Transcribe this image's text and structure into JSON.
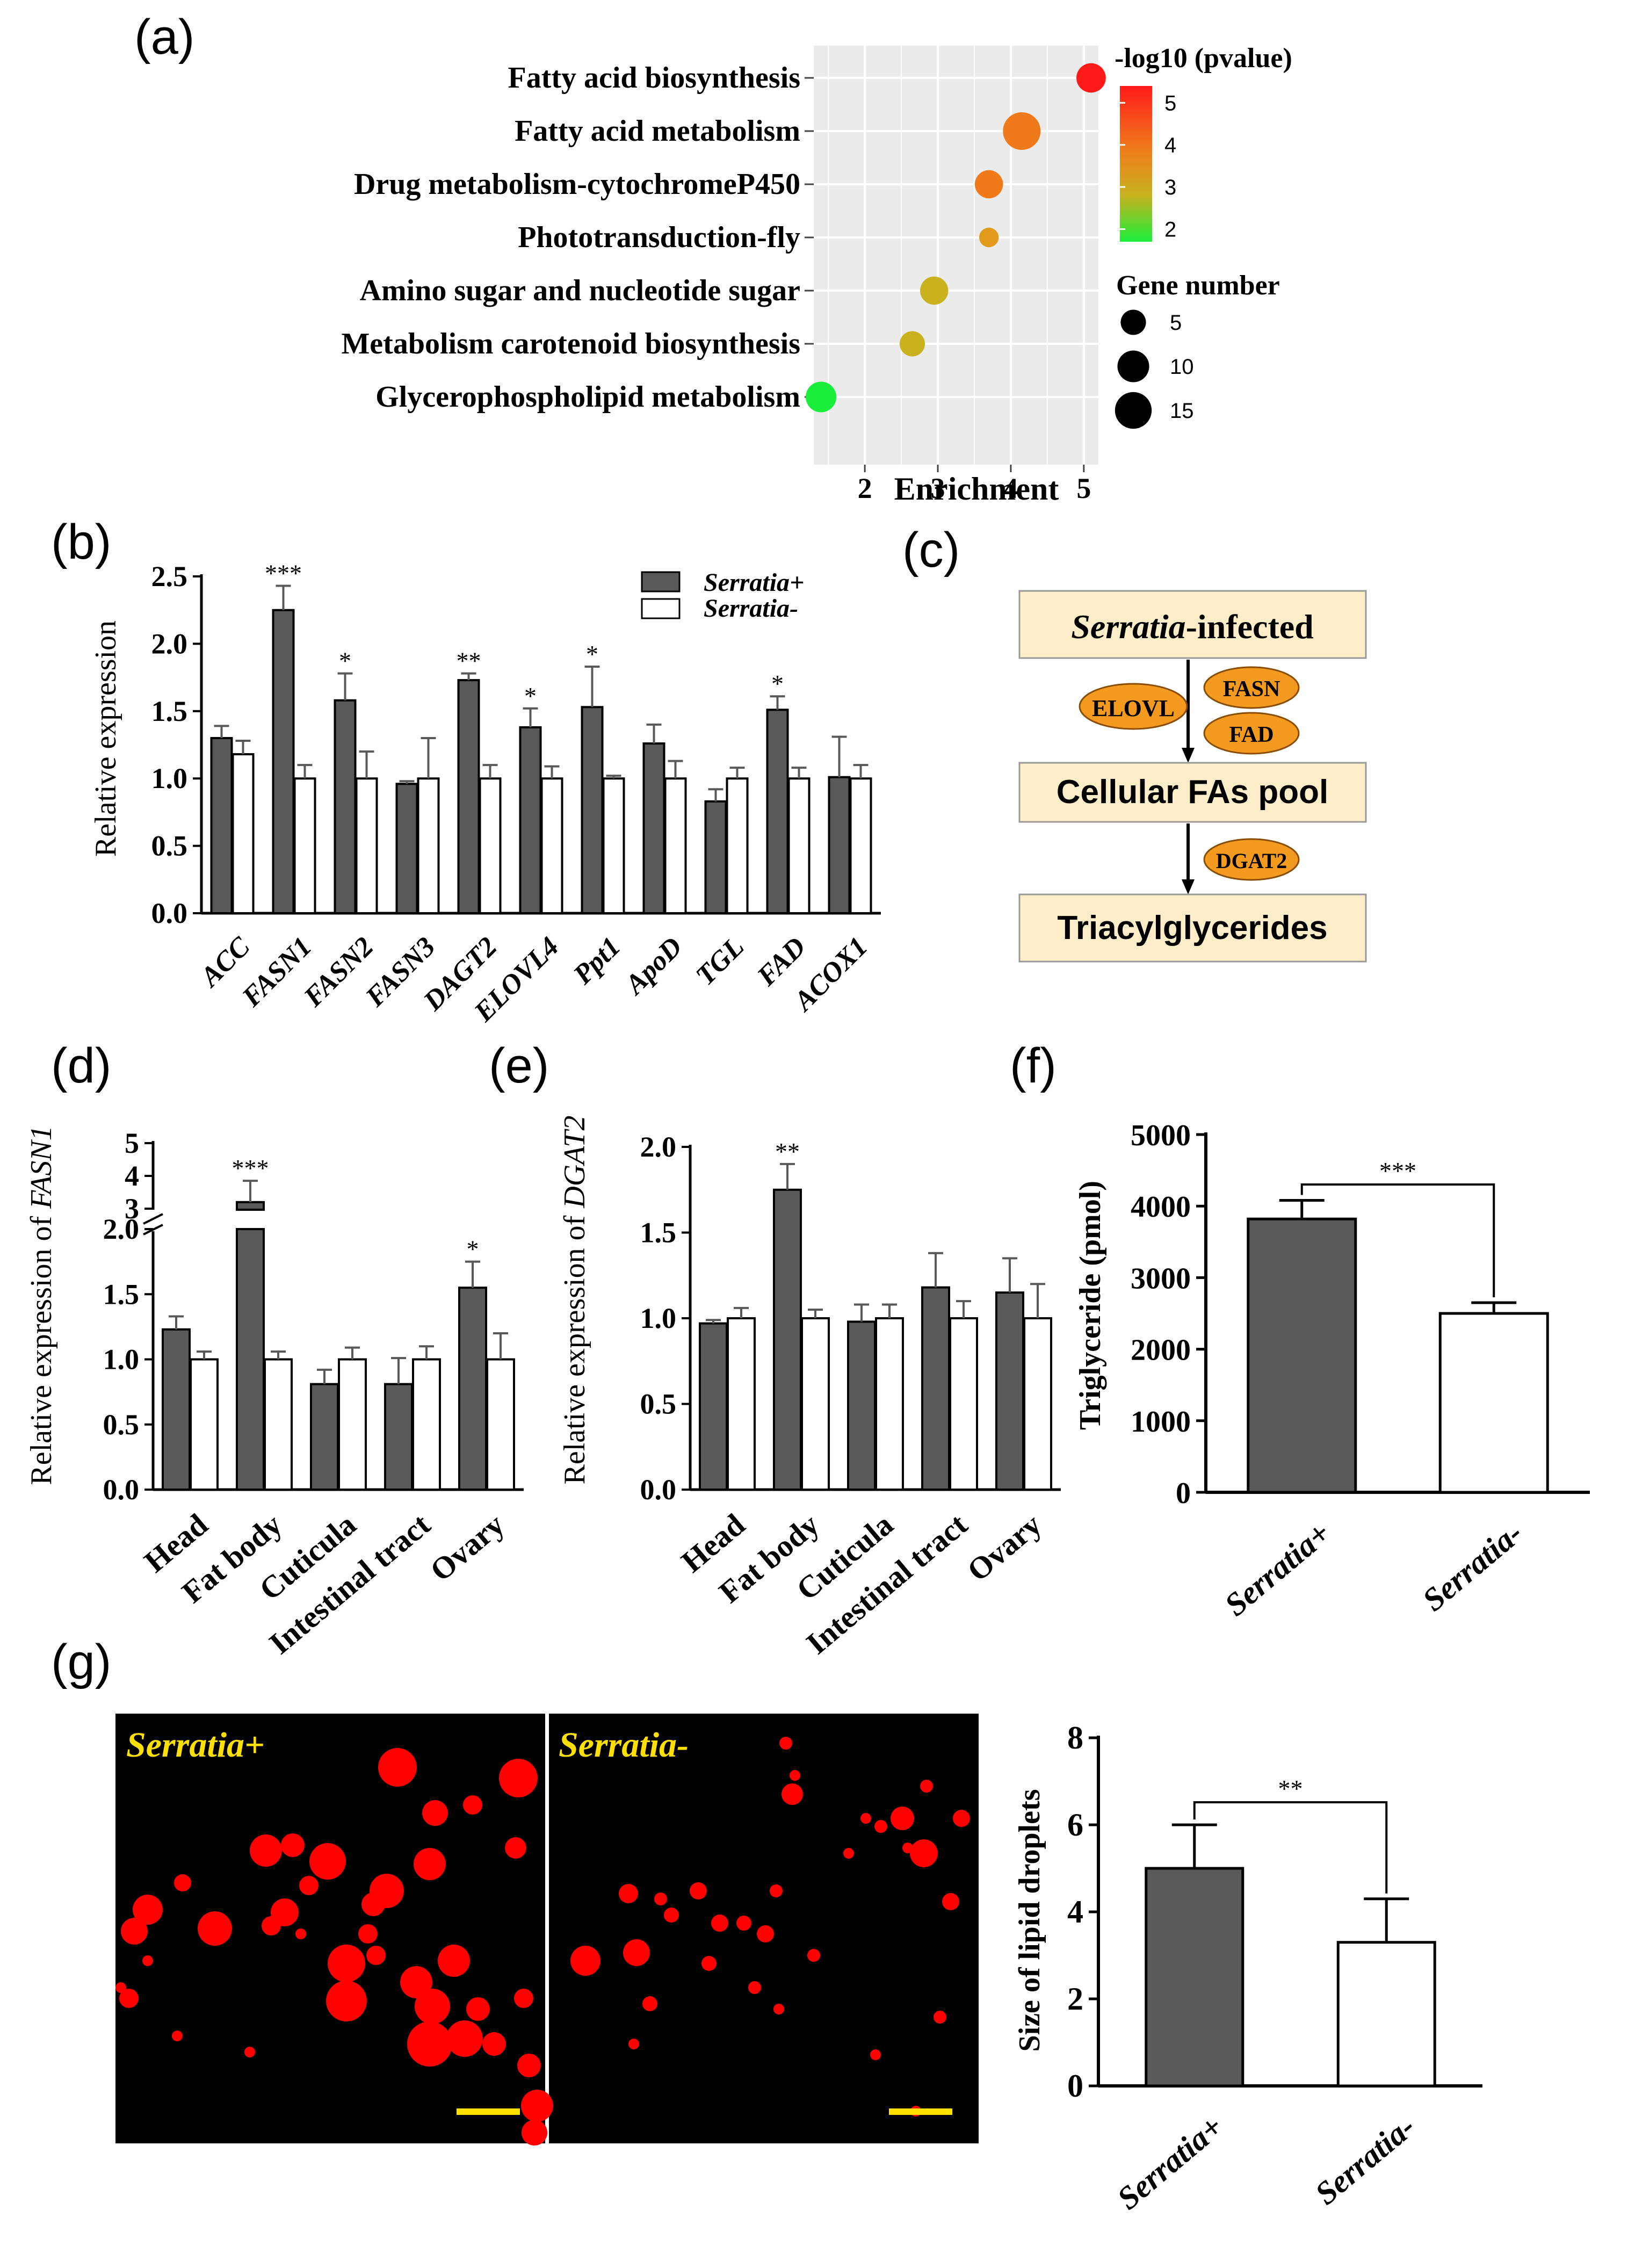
{
  "panels": {
    "a": "(a)",
    "b": "(b)",
    "c": "(c)",
    "d": "(d)",
    "e": "(e)",
    "f": "(f)",
    "g": "(g)"
  },
  "colors": {
    "filled_bar": "#595959",
    "open_bar": "#ffffff",
    "pvalue_high": "#ff1a1a",
    "pvalue_mid_high": "#f07a1a",
    "pvalue_mid": "#c9b21e",
    "pvalue_low": "#1aee3a",
    "droplet": "#ff0000",
    "scale_bar": "#ffe000",
    "image_background": "#000000"
  },
  "chart_data": [
    {
      "id": "a",
      "type": "scatter",
      "xlabel": "Enrichment",
      "xlim": [
        1.3,
        5.2
      ],
      "xticks": [
        2,
        3,
        4,
        5
      ],
      "legend_color_title": "-log10 (pvalue)",
      "legend_color_ticks": [
        5,
        4,
        3,
        2
      ],
      "legend_size_title": "Gene number",
      "legend_size_ticks": [
        5,
        10,
        15
      ],
      "grid": true,
      "points": [
        {
          "pathway": "Fatty acid biosynthesis",
          "enrichment": 5.1,
          "pvalue": 5.4,
          "genes": 8
        },
        {
          "pathway": "Fatty acid metabolism",
          "enrichment": 4.15,
          "pvalue": 4.3,
          "genes": 16
        },
        {
          "pathway": "Drug metabolism-cytochromeP450",
          "enrichment": 3.7,
          "pvalue": 4.0,
          "genes": 7
        },
        {
          "pathway": "Phototransduction-fly",
          "enrichment": 3.7,
          "pvalue": 3.8,
          "genes": 2
        },
        {
          "pathway": "Amino sugar and nucleotide sugar",
          "enrichment": 2.95,
          "pvalue": 3.2,
          "genes": 7
        },
        {
          "pathway": "Metabolism carotenoid biosynthesis",
          "enrichment": 2.65,
          "pvalue": 3.0,
          "genes": 5
        },
        {
          "pathway": "Glycerophospholipid metabolism",
          "enrichment": 1.4,
          "pvalue": 1.7,
          "genes": 9
        }
      ]
    },
    {
      "id": "b",
      "type": "bar",
      "ylabel": "Relative expression",
      "ylim": [
        0,
        2.5
      ],
      "yticks": [
        "0.0",
        "0.5",
        "1.0",
        "1.5",
        "2.0",
        "2.5"
      ],
      "categories": [
        "ACC",
        "FASN1",
        "FASN2",
        "FASN3",
        "DAGT2",
        "ELOVL4",
        "Ppt1",
        "ApoD",
        "TGL",
        "FAD",
        "ACOX1"
      ],
      "series": [
        {
          "name": "Serratia+",
          "values": [
            1.3,
            2.25,
            1.58,
            0.96,
            1.73,
            1.38,
            1.53,
            1.26,
            0.83,
            1.51,
            1.01
          ],
          "errors": [
            0.09,
            0.18,
            0.2,
            0.02,
            0.05,
            0.14,
            0.3,
            0.14,
            0.09,
            0.1,
            0.3
          ]
        },
        {
          "name": "Serratia-",
          "values": [
            1.18,
            1.0,
            1.0,
            1.0,
            1.0,
            1.0,
            1.0,
            1.0,
            1.0,
            1.0,
            1.0
          ],
          "errors": [
            0.1,
            0.1,
            0.2,
            0.3,
            0.1,
            0.09,
            0.02,
            0.13,
            0.08,
            0.08,
            0.1
          ]
        }
      ],
      "significance": [
        "",
        "***",
        "*",
        "",
        "**",
        "*",
        "*",
        "",
        "",
        "*",
        ""
      ]
    },
    {
      "id": "d",
      "type": "bar",
      "ylabel": "Relative expression of ",
      "ylabel_gene": "FASN1",
      "yticks_lower": [
        "0.0",
        "0.5",
        "1.0",
        "1.5",
        "2.0"
      ],
      "yticks_upper": [
        "3",
        "4",
        "5"
      ],
      "categories": [
        "Head",
        "Fat body",
        "Cuticula",
        "Intestinal tract",
        "Ovary"
      ],
      "series": [
        {
          "name": "Serratia+",
          "values": [
            1.23,
            3.2,
            0.81,
            0.81,
            1.55
          ],
          "errors": [
            0.1,
            0.65,
            0.11,
            0.2,
            0.2
          ]
        },
        {
          "name": "Serratia-",
          "values": [
            1.0,
            1.0,
            1.0,
            1.0,
            1.0
          ],
          "errors": [
            0.06,
            0.06,
            0.09,
            0.1,
            0.2
          ]
        }
      ],
      "significance": [
        "",
        "***",
        "",
        "",
        "*"
      ]
    },
    {
      "id": "e",
      "type": "bar",
      "ylabel": "Relative expression of ",
      "ylabel_gene": "DGAT2",
      "ylim": [
        0,
        2.0
      ],
      "yticks": [
        "0.0",
        "0.5",
        "1.0",
        "1.5",
        "2.0"
      ],
      "categories": [
        "Head",
        "Fat body",
        "Cuticula",
        "Intestinal tract",
        "Ovary"
      ],
      "series": [
        {
          "name": "Serratia+",
          "values": [
            0.97,
            1.75,
            0.98,
            1.18,
            1.15
          ],
          "errors": [
            0.02,
            0.15,
            0.1,
            0.2,
            0.2
          ]
        },
        {
          "name": "Serratia-",
          "values": [
            1.0,
            1.0,
            1.0,
            1.0,
            1.0
          ],
          "errors": [
            0.06,
            0.05,
            0.08,
            0.1,
            0.2
          ]
        }
      ],
      "significance": [
        "",
        "**",
        "",
        "",
        ""
      ]
    },
    {
      "id": "f",
      "type": "bar",
      "ylabel": "Triglyceride (pmol)",
      "ylim": [
        0,
        5000
      ],
      "yticks": [
        "0",
        "1000",
        "2000",
        "3000",
        "4000",
        "5000"
      ],
      "categories": [
        "Serratia+",
        "Serratia-"
      ],
      "values": [
        3820,
        2500
      ],
      "errors": [
        260,
        150
      ],
      "significance": "***"
    },
    {
      "id": "g",
      "type": "bar",
      "ylabel": "Size of lipid droplets",
      "ylim": [
        0,
        8
      ],
      "yticks": [
        "0",
        "2",
        "4",
        "6",
        "8"
      ],
      "categories": [
        "Serratia+",
        "Serratia-"
      ],
      "values": [
        5.0,
        3.3
      ],
      "errors": [
        1.0,
        1.0
      ],
      "significance": "**"
    }
  ],
  "diagram_c": {
    "box_top_italic": "Serratia",
    "box_top_rest": "-infected",
    "box_mid": "Cellular FAs pool",
    "box_bottom": "Triacylglycerides",
    "enzymes_step1": [
      "ELOVL",
      "FASN",
      "FAD"
    ],
    "enzymes_step2": [
      "DGAT2"
    ]
  },
  "images_g": [
    {
      "label": "Serratia+"
    },
    {
      "label": "Serratia-"
    }
  ]
}
